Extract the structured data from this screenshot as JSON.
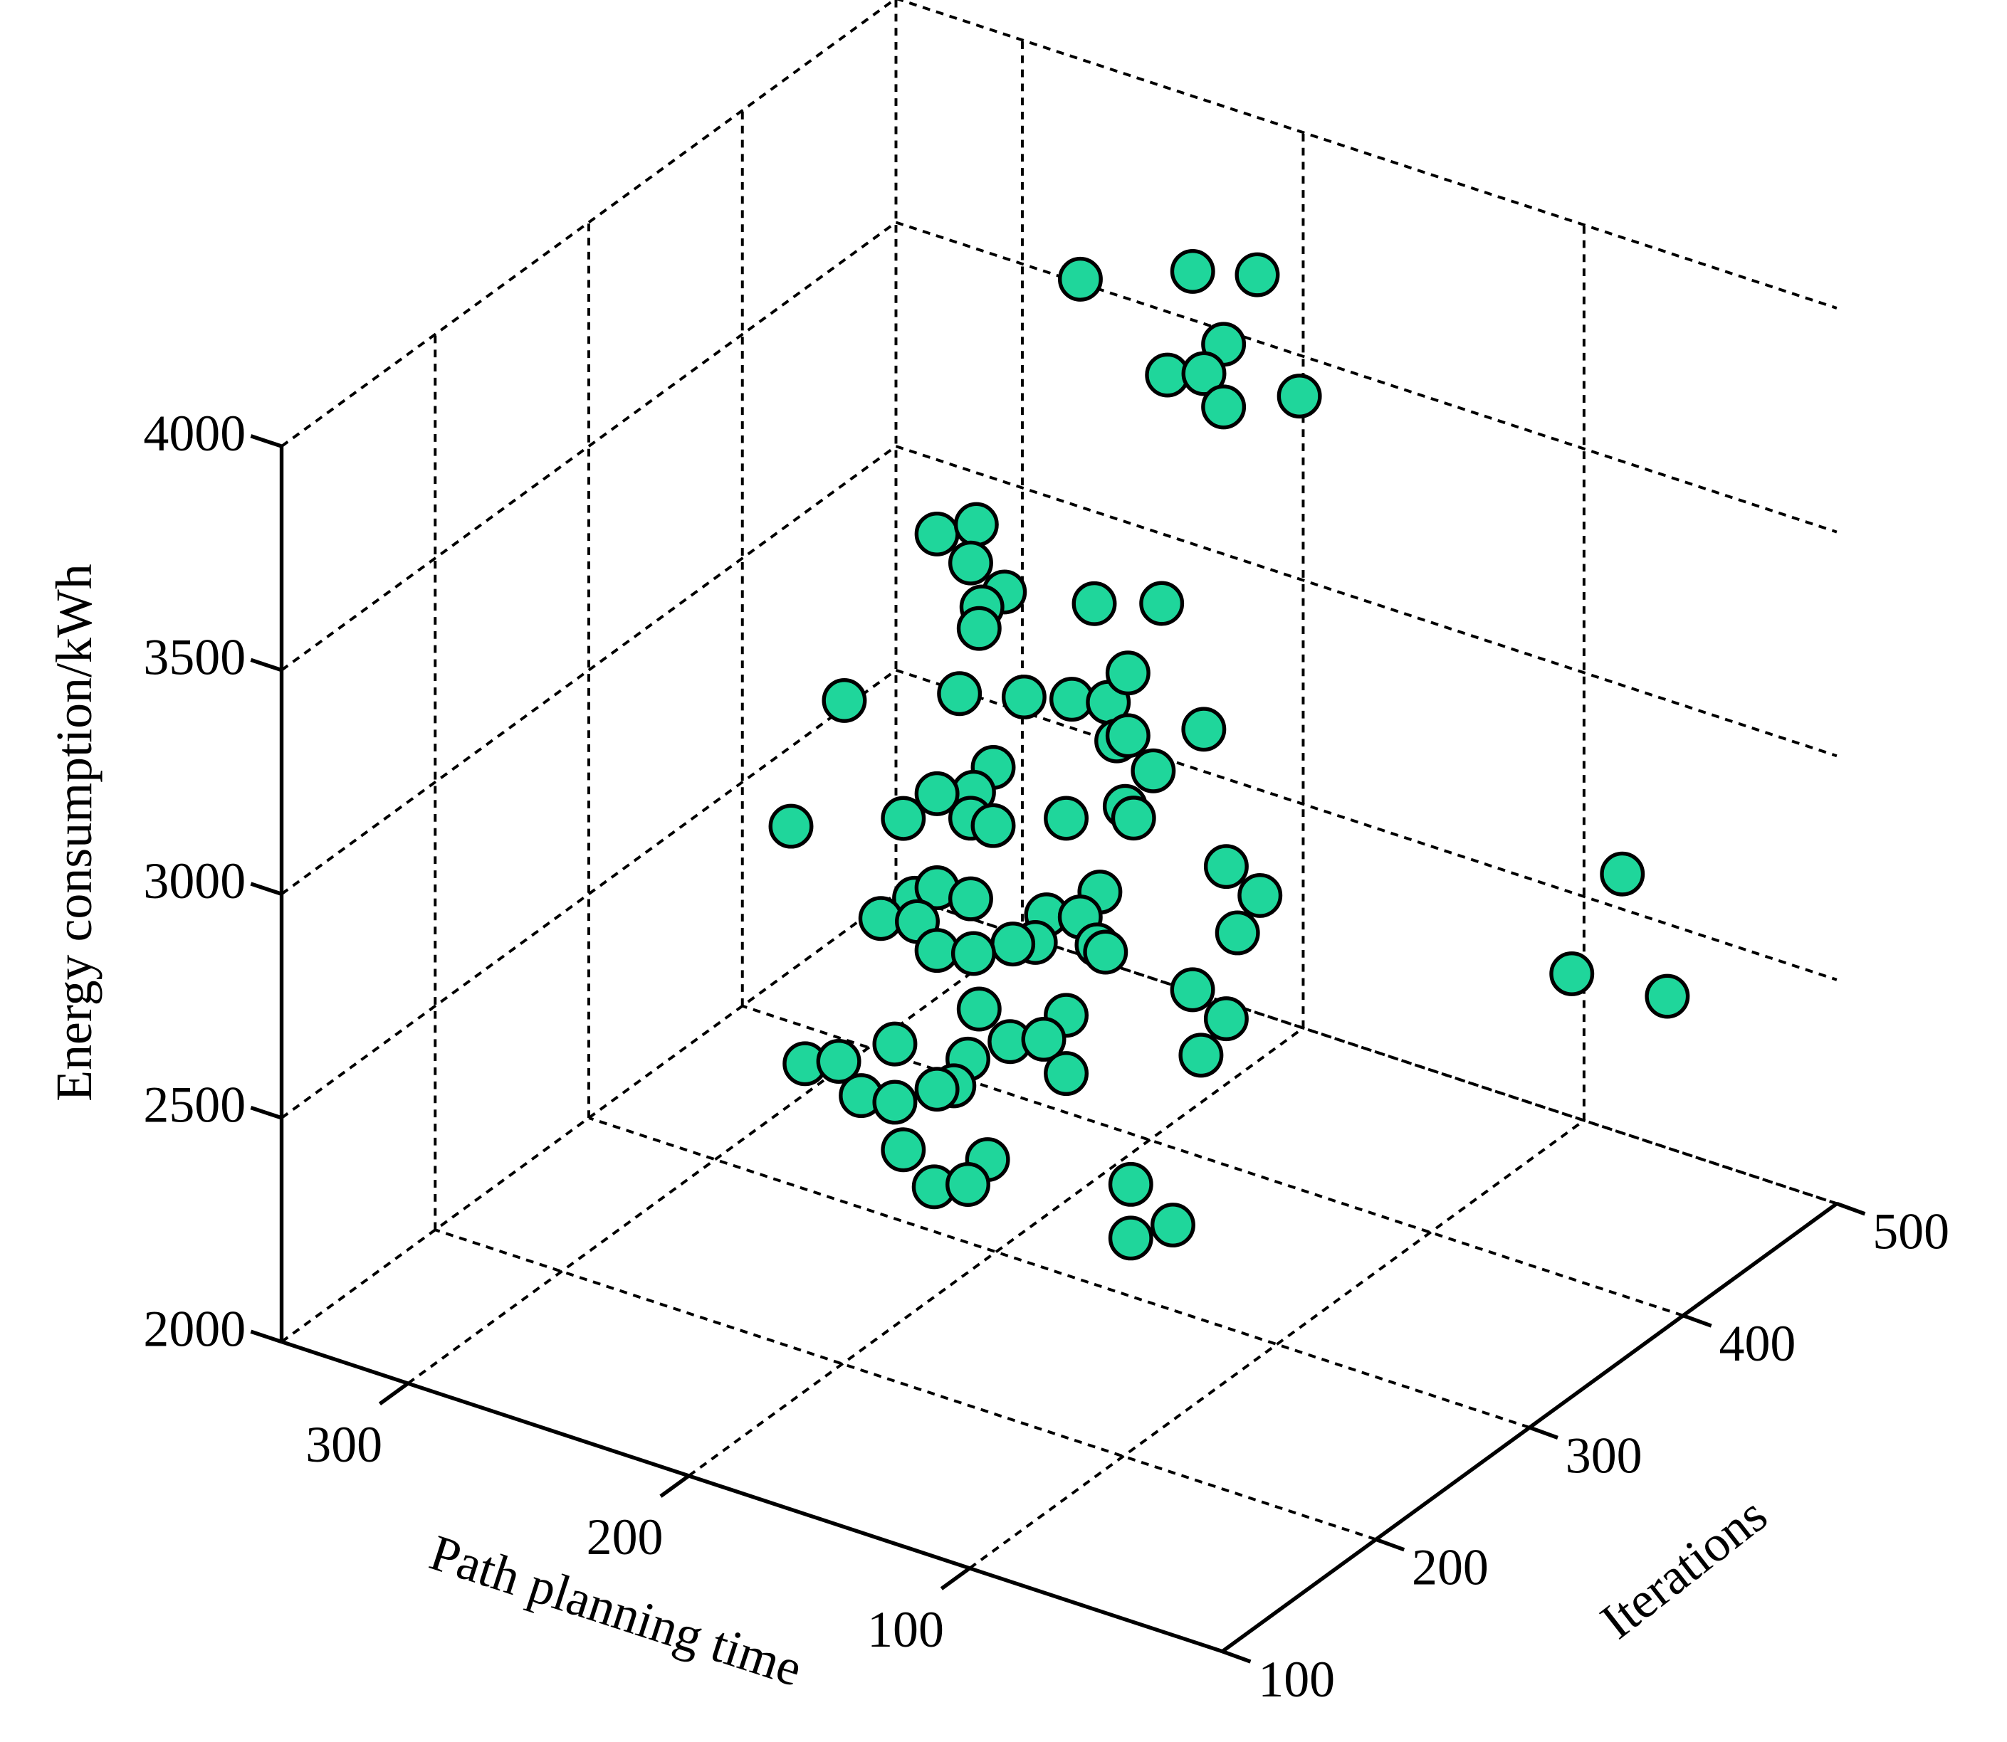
{
  "chart_data": {
    "type": "scatter3d",
    "x_label": "Path planning time",
    "y_label": "Iterations",
    "z_label": "Energy consumption/kWh",
    "color": "#1fd69b",
    "grid": true,
    "xlim": [
      10,
      345
    ],
    "xticks": [
      100,
      200,
      300
    ],
    "ylim": [
      100,
      500
    ],
    "yticks": [
      100,
      200,
      300,
      400,
      500
    ],
    "zlim": [
      2000,
      4000
    ],
    "zticks": [
      2000,
      2500,
      3000,
      3500,
      4000
    ],
    "x": [
      252,
      212,
      189,
      201,
      221,
      208,
      201,
      174,
      221,
      207,
      209,
      197,
      205,
      206,
      165,
      141,
      254,
      213,
      190,
      173,
      160,
      153,
      126,
      157,
      153,
      144,
      201,
      208,
      221,
      273,
      233,
      209,
      201,
      175,
      154,
      151,
      118,
      106,
      114,
      163,
      229,
      221,
      209,
      241,
      228,
      182,
      170,
      186,
      194,
      164,
      161,
      221,
      208,
      130,
      206,
      175,
      118,
      127,
      236,
      195,
      183,
      210,
      268,
      256,
      175,
      215,
      221,
      248,
      236,
      233,
      203,
      222,
      210,
      152,
      152,
      137,
      59,
      77,
      43
    ],
    "y": [
      450,
      450,
      450,
      450,
      450,
      450,
      450,
      450,
      300,
      300,
      300,
      300,
      300,
      300,
      300,
      300,
      300,
      300,
      300,
      300,
      300,
      300,
      300,
      300,
      300,
      300,
      300,
      300,
      300,
      300,
      300,
      300,
      300,
      300,
      300,
      300,
      300,
      300,
      300,
      300,
      300,
      300,
      300,
      300,
      300,
      300,
      300,
      300,
      300,
      300,
      300,
      300,
      300,
      300,
      300,
      300,
      300,
      300,
      300,
      300,
      300,
      300,
      300,
      300,
      300,
      300,
      300,
      300,
      300,
      300,
      300,
      300,
      300,
      300,
      300,
      300,
      450,
      450,
      450
    ],
    "z": [
      3690,
      3790,
      3830,
      3650,
      3540,
      3570,
      3510,
      3590,
      3560,
      3610,
      3520,
      3480,
      3430,
      3380,
      3520,
      3570,
      3120,
      3220,
      3260,
      3290,
      3310,
      3390,
      3320,
      3230,
      3250,
      3190,
      3080,
      3010,
      2980,
      2800,
      2900,
      2950,
      2950,
      3020,
      3090,
      3070,
      3030,
      2990,
      2890,
      2880,
      2730,
      2770,
      2770,
      2660,
      2680,
      2790,
      2810,
      2720,
      2700,
      2760,
      2750,
      2630,
      2650,
      2730,
      2530,
      2580,
      2690,
      2590,
      2390,
      2480,
      2510,
      2410,
      2280,
      2310,
      2450,
      2340,
      2320,
      2250,
      2260,
      2160,
      2200,
      2100,
      2130,
      2250,
      2130,
      2190,
      2760,
      2500,
      2520
    ]
  }
}
